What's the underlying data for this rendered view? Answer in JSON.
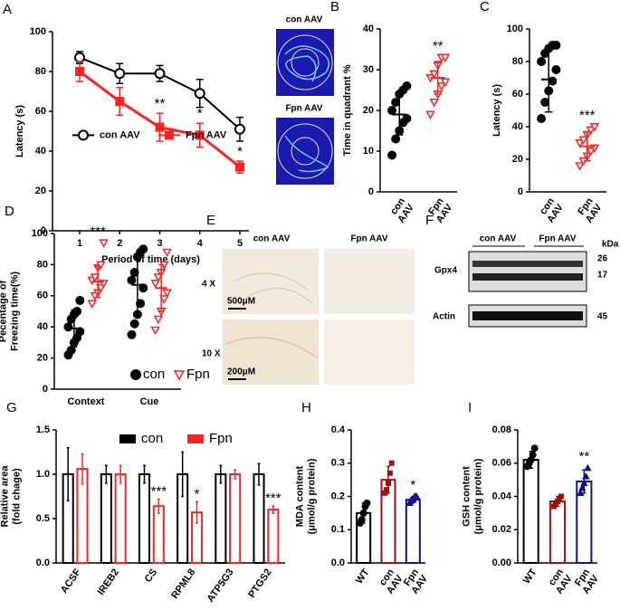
{
  "chart_data": [
    {
      "label": "A",
      "type": "line",
      "ylabel": "Latency (s)",
      "xlabel": "Period of time (days)",
      "categories": [
        1,
        2,
        3,
        4,
        5
      ],
      "ylim": [
        0,
        100
      ],
      "yticks": [
        0,
        20,
        40,
        60,
        80,
        100
      ],
      "legend": "center left",
      "series": [
        {
          "name": "con AAV",
          "color": "#000000",
          "marker": "circle-open",
          "values": [
            87,
            79,
            79,
            69,
            51
          ],
          "errors": [
            3,
            5,
            4,
            7,
            6
          ],
          "significance": [
            null,
            null,
            null,
            null,
            null
          ]
        },
        {
          "name": "Fpn AAV",
          "color": "#ff2222",
          "marker": "square",
          "values": [
            80,
            65,
            52,
            48,
            32
          ],
          "errors": [
            5,
            7,
            7,
            6,
            3
          ],
          "significance": [
            null,
            null,
            "**",
            "*",
            "*"
          ]
        }
      ]
    },
    {
      "label": "B",
      "type": "dot",
      "ylabel": "Time in quadrant %",
      "categories": [
        [
          "con",
          "AAV"
        ],
        [
          "Fpn",
          "AAV"
        ]
      ],
      "colors": [
        "#000000",
        "#ff2222"
      ],
      "markers": [
        "circle",
        "triangle-open"
      ],
      "ylim": [
        0,
        40
      ],
      "yticks": [
        0,
        10,
        20,
        30,
        40
      ],
      "values": [
        19,
        28
      ],
      "errors": [
        5,
        4
      ],
      "significance": [
        null,
        "**"
      ],
      "points": [
        [
          9,
          13,
          15,
          17,
          18,
          20,
          22,
          24,
          25,
          26
        ],
        [
          19,
          22,
          24,
          26,
          27,
          28,
          29,
          31,
          33,
          33
        ]
      ]
    },
    {
      "label": "C",
      "type": "dot",
      "ylabel": "Latency (s)",
      "categories": [
        [
          "con",
          "AAV"
        ],
        [
          "Fpn",
          "AAV"
        ]
      ],
      "colors": [
        "#000000",
        "#ff2222"
      ],
      "markers": [
        "circle",
        "triangle-open"
      ],
      "ylim": [
        0,
        100
      ],
      "yticks": [
        0,
        20,
        40,
        60,
        80,
        100
      ],
      "values": [
        69,
        28
      ],
      "errors": [
        20,
        9
      ],
      "significance": [
        null,
        "***"
      ],
      "points": [
        [
          45,
          55,
          62,
          68,
          75,
          80,
          85,
          88,
          90,
          90
        ],
        [
          16,
          19,
          22,
          25,
          27,
          30,
          32,
          35,
          38,
          40
        ]
      ]
    },
    {
      "label": "D",
      "type": "dot",
      "ylabel": [
        "Pecentage of",
        "Freezing time(%)"
      ],
      "categories": [
        "Context",
        "Cue"
      ],
      "ylim": [
        0,
        100
      ],
      "yticks": [
        0,
        20,
        40,
        60,
        80,
        100
      ],
      "legend": "bottom",
      "series": [
        {
          "name": "con",
          "color": "#000000",
          "marker": "circle",
          "values": [
            39,
            67
          ],
          "errors": [
            12,
            20
          ],
          "significance": [
            null,
            null
          ],
          "points": [
            [
              22,
              25,
              30,
              33,
              37,
              40,
              45,
              48,
              50,
              57
            ],
            [
              35,
              42,
              48,
              55,
              65,
              70,
              75,
              85,
              88,
              90
            ]
          ]
        },
        {
          "name": "Fpn",
          "color": "#ff2222",
          "marker": "triangle-open",
          "values": [
            69,
            65
          ],
          "errors": [
            10,
            15
          ],
          "significance": [
            "***",
            null
          ],
          "points": [
            [
              55,
              60,
              62,
              65,
              68,
              70,
              72,
              78,
              80,
              94
            ],
            [
              38,
              45,
              50,
              58,
              62,
              68,
              72,
              75,
              80,
              88
            ]
          ]
        }
      ]
    },
    {
      "label": "G",
      "type": "bar",
      "ylabel": [
        "Relative area",
        "(fold chage)"
      ],
      "categories": [
        "ACSF",
        "IREB2",
        "CS",
        "RPML8",
        "ATP5G3",
        "PTGS2"
      ],
      "ylim": [
        0,
        1.5
      ],
      "yticks": [
        {
          "value": 0,
          "label": "0.0"
        },
        0.5,
        {
          "value": 1,
          "label": "1.0"
        },
        1.5
      ],
      "legend": "top",
      "series": [
        {
          "name": "con",
          "color": "#000000",
          "values": [
            1.0,
            1.0,
            1.0,
            1.0,
            1.0,
            1.0
          ],
          "errors": [
            0.3,
            0.1,
            0.1,
            0.25,
            0.1,
            0.12
          ],
          "significance": [
            null,
            null,
            null,
            null,
            null,
            null
          ]
        },
        {
          "name": "Fpn",
          "color": "#ff2222",
          "values": [
            1.06,
            1.0,
            0.64,
            0.57,
            1.0,
            0.6
          ],
          "errors": [
            0.17,
            0.1,
            0.08,
            0.12,
            0.05,
            0.04
          ],
          "significance": [
            null,
            null,
            "***",
            "*",
            null,
            "***"
          ]
        }
      ]
    },
    {
      "label": "H",
      "type": "bar",
      "ylabel": [
        "MDA content",
        "(μmol/g protein)"
      ],
      "categories": [
        [
          "WT"
        ],
        [
          "con",
          "AAV"
        ],
        [
          "Fpn",
          "AAV"
        ]
      ],
      "colors": [
        "#000000",
        "#a01010",
        "#10108a"
      ],
      "markers": [
        "circle",
        "square",
        "triangle"
      ],
      "ylim": [
        0,
        0.4
      ],
      "yticks": [
        {
          "value": 0,
          "label": "0.0"
        },
        0.1,
        0.2,
        0.3,
        0.4
      ],
      "values": [
        0.15,
        0.25,
        0.19
      ],
      "errors": [
        0.03,
        0.04,
        0.01
      ],
      "significance": [
        null,
        null,
        "*"
      ],
      "points": [
        [
          0.12,
          0.13,
          0.15,
          0.17,
          0.18
        ],
        [
          0.21,
          0.22,
          0.24,
          0.27,
          0.3
        ],
        [
          0.18,
          0.19,
          0.19,
          0.2,
          0.2
        ]
      ]
    },
    {
      "label": "I",
      "type": "bar",
      "ylabel": [
        "GSH content",
        "(μmol/g protein)"
      ],
      "categories": [
        [
          "WT"
        ],
        [
          "con",
          "AAV"
        ],
        [
          "Fpn",
          "AAV"
        ]
      ],
      "colors": [
        "#000000",
        "#a01010",
        "#10108a"
      ],
      "markers": [
        "circle",
        "square",
        "triangle"
      ],
      "ylim": [
        0,
        0.08
      ],
      "yticks": [
        {
          "value": 0,
          "label": "0.00"
        },
        0.02,
        0.04,
        0.06,
        0.08
      ],
      "values": [
        0.062,
        0.037,
        0.049
      ],
      "errors": [
        0.005,
        0.003,
        0.007
      ],
      "significance": [
        null,
        null,
        "**"
      ],
      "points": [
        [
          0.058,
          0.06,
          0.062,
          0.065,
          0.069
        ],
        [
          0.034,
          0.036,
          0.037,
          0.038,
          0.04
        ],
        [
          0.042,
          0.045,
          0.048,
          0.052,
          0.057
        ]
      ]
    }
  ],
  "maze": {
    "labels": [
      "con AAV",
      "Fpn AAV"
    ]
  },
  "histology": {
    "label": "E",
    "columns": [
      "con AAV",
      "Fpn AAV"
    ],
    "rows": [
      "4 X",
      "10 X"
    ],
    "scale_bars": [
      "500μM",
      "200μM"
    ]
  },
  "blot": {
    "label": "F",
    "groups": [
      "con AAV",
      "Fpn AAV"
    ],
    "proteins": [
      "Gpx4",
      "Actin"
    ],
    "unit": "kDa",
    "sizes": [
      26,
      17,
      45
    ]
  }
}
